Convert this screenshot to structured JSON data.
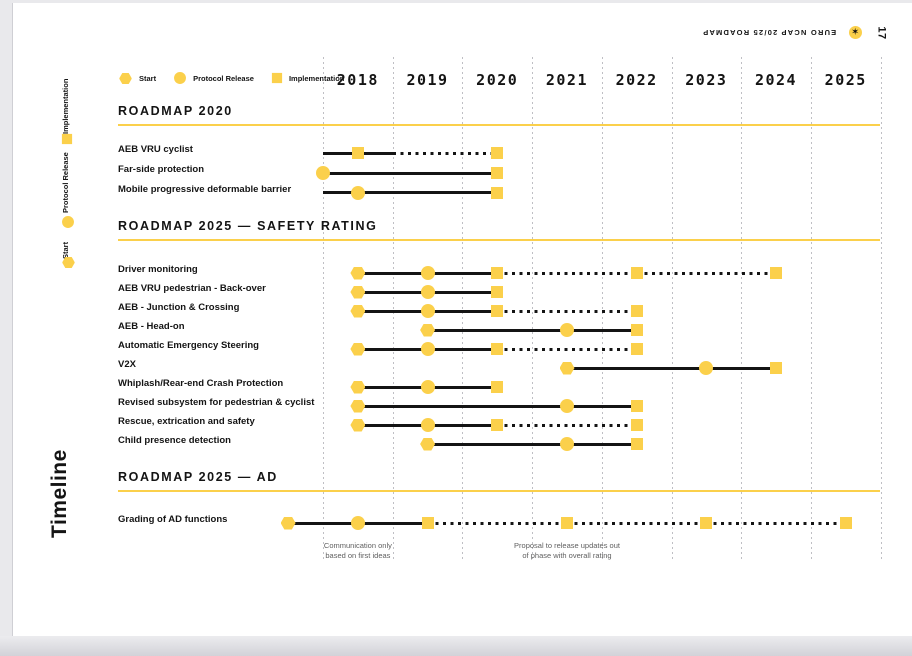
{
  "page": {
    "header_title": "EURO NCAP 20/25 ROADMAP",
    "page_number": "17",
    "sidebar_title": "Timeline",
    "logo_glyph": "✶"
  },
  "colors": {
    "yellow": "#FBD04B",
    "ink": "#141414",
    "gridline": "#bfbfc4",
    "annotation_text": "#5f5f5f"
  },
  "legend": {
    "items": [
      {
        "icon": "hexagon-icon",
        "shape": "hex",
        "label": "Start"
      },
      {
        "icon": "circle-icon",
        "shape": "circle",
        "label": "Protocol Release"
      },
      {
        "icon": "square-icon",
        "shape": "square",
        "label": "Implementation"
      }
    ]
  },
  "side_legend": {
    "items": [
      {
        "icon": "square-icon",
        "shape": "square",
        "label": "Implementation"
      },
      {
        "icon": "circle-icon",
        "shape": "circle",
        "label": "Protocol Release"
      },
      {
        "icon": "hexagon-icon",
        "shape": "hex",
        "label": "Start"
      }
    ]
  },
  "chart_data": {
    "type": "gantt",
    "title": "Timeline",
    "x_axis": {
      "tick_labels": [
        "2018",
        "2019",
        "2020",
        "2021",
        "2022",
        "2023",
        "2024",
        "2025"
      ],
      "range": [
        2018,
        2026
      ],
      "grid": true
    },
    "marker_meaning": {
      "hex": "Start",
      "circle": "Protocol Release",
      "square": "Implementation"
    },
    "sections": [
      {
        "title": "ROADMAP 2020",
        "rows": [
          {
            "label": "AEB VRU cyclist",
            "segments": [
              [
                2018.0,
                2019.0,
                "solid"
              ],
              [
                2019.0,
                2020.5,
                "dotted"
              ]
            ],
            "markers": [
              [
                2018.5,
                "square"
              ],
              [
                2020.5,
                "square"
              ]
            ]
          },
          {
            "label": "Far-side protection",
            "segments": [
              [
                2018.0,
                2020.5,
                "solid"
              ]
            ],
            "markers": [
              [
                2018.0,
                "circle"
              ],
              [
                2020.5,
                "square"
              ]
            ]
          },
          {
            "label": "Mobile progressive deformable barrier",
            "segments": [
              [
                2018.0,
                2020.5,
                "solid"
              ]
            ],
            "markers": [
              [
                2018.5,
                "circle"
              ],
              [
                2020.5,
                "square"
              ]
            ]
          }
        ]
      },
      {
        "title": "ROADMAP 2025 — SAFETY RATING",
        "rows": [
          {
            "label": "Driver monitoring",
            "segments": [
              [
                2018.5,
                2020.5,
                "solid"
              ],
              [
                2020.5,
                2022.5,
                "dotted"
              ],
              [
                2022.5,
                2024.5,
                "dotted"
              ]
            ],
            "markers": [
              [
                2018.5,
                "hex"
              ],
              [
                2019.5,
                "circle"
              ],
              [
                2020.5,
                "square"
              ],
              [
                2022.5,
                "square"
              ],
              [
                2024.5,
                "square"
              ]
            ]
          },
          {
            "label": "AEB VRU pedestrian - Back-over",
            "segments": [
              [
                2018.5,
                2020.5,
                "solid"
              ]
            ],
            "markers": [
              [
                2018.5,
                "hex"
              ],
              [
                2019.5,
                "circle"
              ],
              [
                2020.5,
                "square"
              ]
            ]
          },
          {
            "label": "AEB - Junction & Crossing",
            "segments": [
              [
                2018.5,
                2020.5,
                "solid"
              ],
              [
                2020.5,
                2022.5,
                "dotted"
              ]
            ],
            "markers": [
              [
                2018.5,
                "hex"
              ],
              [
                2019.5,
                "circle"
              ],
              [
                2020.5,
                "square"
              ],
              [
                2022.5,
                "square"
              ]
            ]
          },
          {
            "label": "AEB - Head-on",
            "segments": [
              [
                2019.5,
                2022.5,
                "solid"
              ]
            ],
            "markers": [
              [
                2019.5,
                "hex"
              ],
              [
                2021.5,
                "circle"
              ],
              [
                2022.5,
                "square"
              ]
            ]
          },
          {
            "label": "Automatic Emergency Steering",
            "segments": [
              [
                2018.5,
                2020.5,
                "solid"
              ],
              [
                2020.5,
                2022.5,
                "dotted"
              ]
            ],
            "markers": [
              [
                2018.5,
                "hex"
              ],
              [
                2019.5,
                "circle"
              ],
              [
                2020.5,
                "square"
              ],
              [
                2022.5,
                "square"
              ]
            ]
          },
          {
            "label": "V2X",
            "segments": [
              [
                2021.5,
                2024.5,
                "solid"
              ]
            ],
            "markers": [
              [
                2021.5,
                "hex"
              ],
              [
                2023.5,
                "circle"
              ],
              [
                2024.5,
                "square"
              ]
            ]
          },
          {
            "label": "Whiplash/Rear-end Crash Protection",
            "segments": [
              [
                2018.5,
                2020.5,
                "solid"
              ]
            ],
            "markers": [
              [
                2018.5,
                "hex"
              ],
              [
                2019.5,
                "circle"
              ],
              [
                2020.5,
                "square"
              ]
            ]
          },
          {
            "label": "Revised subsystem for pedestrian & cyclist",
            "segments": [
              [
                2018.5,
                2022.5,
                "solid"
              ]
            ],
            "markers": [
              [
                2018.5,
                "hex"
              ],
              [
                2021.5,
                "circle"
              ],
              [
                2022.5,
                "square"
              ]
            ]
          },
          {
            "label": "Rescue, extrication and safety",
            "segments": [
              [
                2018.5,
                2020.5,
                "solid"
              ],
              [
                2020.5,
                2022.5,
                "dotted"
              ]
            ],
            "markers": [
              [
                2018.5,
                "hex"
              ],
              [
                2019.5,
                "circle"
              ],
              [
                2020.5,
                "square"
              ],
              [
                2022.5,
                "square"
              ]
            ]
          },
          {
            "label": "Child presence detection",
            "segments": [
              [
                2019.5,
                2022.5,
                "solid"
              ]
            ],
            "markers": [
              [
                2019.5,
                "hex"
              ],
              [
                2021.5,
                "circle"
              ],
              [
                2022.5,
                "square"
              ]
            ]
          }
        ]
      },
      {
        "title": "ROADMAP 2025 — AD",
        "rows": [
          {
            "label": "Grading of AD functions",
            "segments": [
              [
                2017.5,
                2019.5,
                "solid"
              ],
              [
                2019.5,
                2021.5,
                "dotted"
              ],
              [
                2021.5,
                2023.5,
                "dotted"
              ],
              [
                2023.5,
                2025.5,
                "dotted"
              ]
            ],
            "markers": [
              [
                2017.5,
                "hex"
              ],
              [
                2018.5,
                "circle"
              ],
              [
                2019.5,
                "square"
              ],
              [
                2021.5,
                "square"
              ],
              [
                2023.5,
                "square"
              ],
              [
                2025.5,
                "square"
              ]
            ]
          }
        ]
      }
    ],
    "annotations": [
      {
        "pos": 2018.5,
        "lines": [
          "Communication only",
          "based on first ideas"
        ]
      },
      {
        "pos": 2021.5,
        "lines": [
          "Proposal to release updates out",
          "of phase with overall rating"
        ]
      }
    ]
  }
}
